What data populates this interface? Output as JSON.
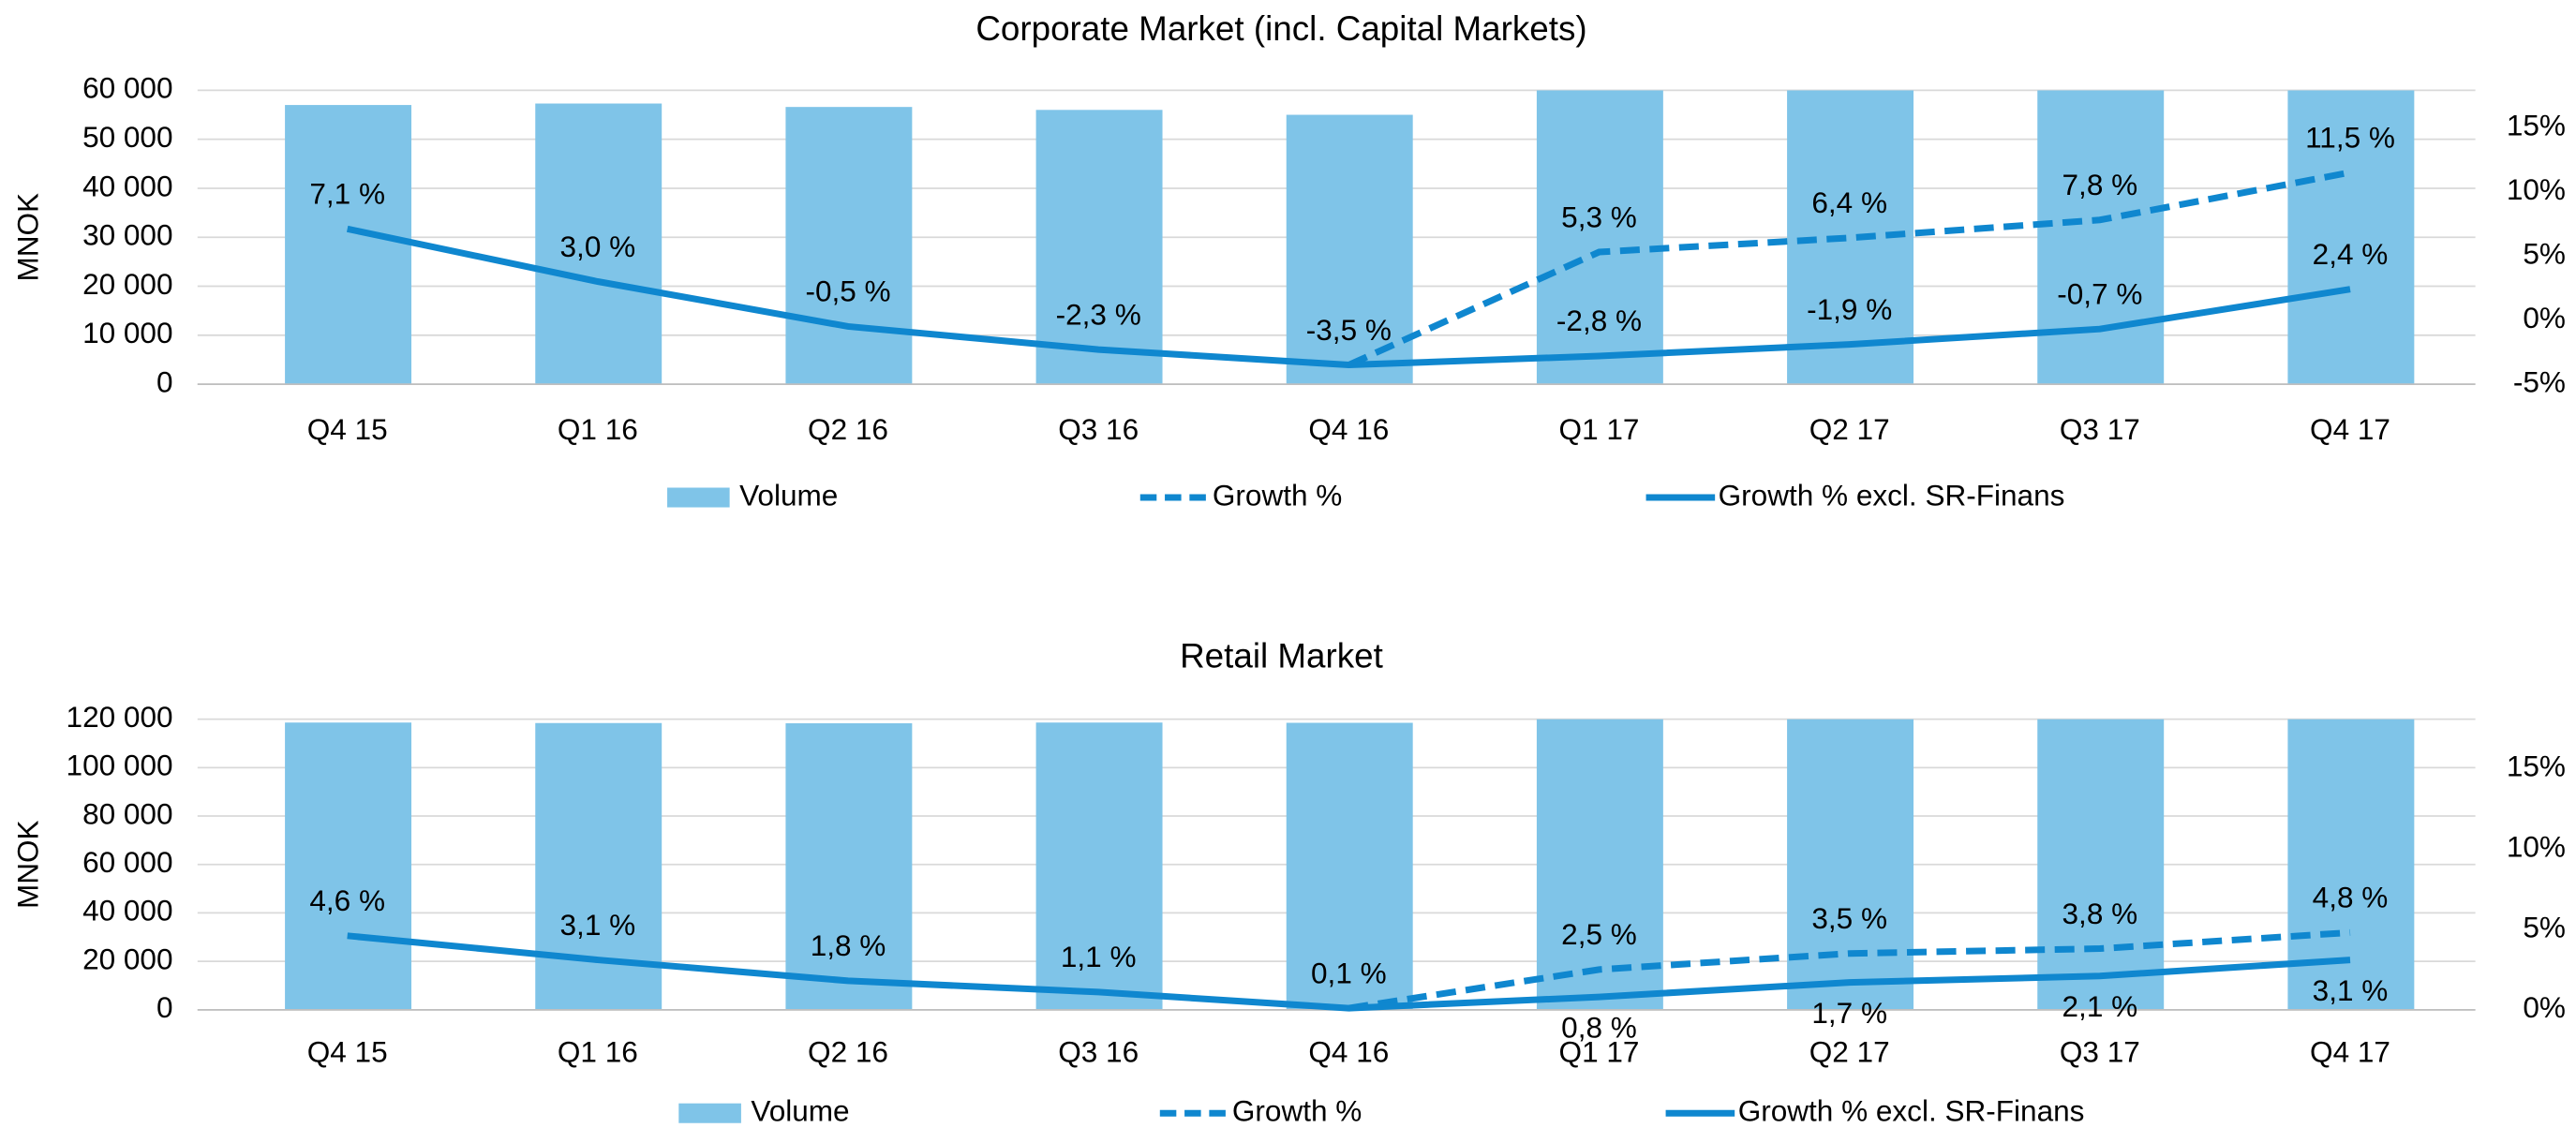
{
  "chart_data": [
    {
      "type": "bar_line",
      "title": "Corporate Market (incl. Capital Markets)",
      "y_label": "MNOK",
      "categories": [
        "Q4 15",
        "Q1 16",
        "Q2 16",
        "Q3 16",
        "Q4 16",
        "Q1 17",
        "Q2 17",
        "Q3 17",
        "Q4 17"
      ],
      "series": [
        {
          "name": "Volume",
          "type": "bar",
          "color": "#7fc4e8",
          "values": [
            57000,
            57300,
            56600,
            56000,
            55000,
            60000,
            60000,
            60000,
            60000
          ]
        },
        {
          "name": "Growth %",
          "type": "line",
          "line_style": "dashed",
          "axis": "y2",
          "color": "#0f87cf",
          "values": [
            null,
            null,
            null,
            null,
            -3.5,
            5.3,
            6.4,
            7.8,
            11.5
          ],
          "value_labels": [
            null,
            null,
            null,
            null,
            "-3,5 %",
            "5,3 %",
            "6,4 %",
            "7,8 %",
            "11,5 %"
          ]
        },
        {
          "name": "Growth % excl. SR-Finans",
          "type": "line",
          "line_style": "solid",
          "axis": "y2",
          "color": "#0f87cf",
          "values": [
            7.1,
            3.0,
            -0.5,
            -2.3,
            -3.5,
            -2.8,
            -1.9,
            -0.7,
            2.4
          ],
          "value_labels": [
            "7,1 %",
            "3,0 %",
            "-0,5 %",
            "-2,3 %",
            "-3,5 %",
            "-2,8 %",
            "-1,9 %",
            "-0,7 %",
            "2,4 %"
          ]
        }
      ],
      "ylim": [
        0,
        60000
      ],
      "yticks": [
        {
          "value": 0,
          "label": "0"
        },
        {
          "value": 10000,
          "label": "10 000"
        },
        {
          "value": 20000,
          "label": "20 000"
        },
        {
          "value": 30000,
          "label": "30 000"
        },
        {
          "value": 40000,
          "label": "40 000"
        },
        {
          "value": 50000,
          "label": "50 000"
        },
        {
          "value": 60000,
          "label": "60 000"
        }
      ],
      "y2lim": [
        -5,
        17.9
      ],
      "y2ticks": [
        {
          "value": -5,
          "label": "-5%"
        },
        {
          "value": 0,
          "label": "0%"
        },
        {
          "value": 5,
          "label": "5%"
        },
        {
          "value": 10,
          "label": "10%"
        },
        {
          "value": 15,
          "label": "15%"
        }
      ],
      "grid": true,
      "legend": "bottom"
    },
    {
      "type": "bar_line",
      "title": "Retail Market",
      "y_label": "MNOK",
      "categories": [
        "Q4 15",
        "Q1 16",
        "Q2 16",
        "Q3 16",
        "Q4 16",
        "Q1 17",
        "Q2 17",
        "Q3 17",
        "Q4 17"
      ],
      "series": [
        {
          "name": "Volume",
          "type": "bar",
          "color": "#7fc4e8",
          "values": [
            118600,
            118400,
            118300,
            118600,
            118500,
            120000,
            120000,
            120000,
            120000
          ]
        },
        {
          "name": "Growth %",
          "type": "line",
          "line_style": "dashed",
          "axis": "y2",
          "color": "#0f87cf",
          "values": [
            null,
            null,
            null,
            null,
            0.1,
            2.5,
            3.5,
            3.8,
            4.8
          ],
          "value_labels": [
            null,
            null,
            null,
            null,
            "0,1 %",
            "2,5 %",
            "3,5 %",
            "3,8 %",
            "4,8 %"
          ]
        },
        {
          "name": "Growth % excl. SR-Finans",
          "type": "line",
          "line_style": "solid",
          "axis": "y2",
          "color": "#0f87cf",
          "values": [
            4.6,
            3.1,
            1.8,
            1.1,
            0.1,
            0.8,
            1.7,
            2.1,
            3.1
          ],
          "value_labels": [
            "4,6 %",
            "3,1 %",
            "1,8 %",
            "1,1 %",
            "0,1 %",
            "0,8 %",
            "1,7 %",
            "2,1 %",
            "3,1 %"
          ]
        }
      ],
      "ylim": [
        0,
        120000
      ],
      "yticks": [
        {
          "value": 0,
          "label": "0"
        },
        {
          "value": 20000,
          "label": "20 000"
        },
        {
          "value": 40000,
          "label": "40 000"
        },
        {
          "value": 60000,
          "label": "60 000"
        },
        {
          "value": 80000,
          "label": "80 000"
        },
        {
          "value": 100000,
          "label": "100 000"
        },
        {
          "value": 120000,
          "label": "120 000"
        }
      ],
      "y2lim": [
        0,
        18.06
      ],
      "y2ticks": [
        {
          "value": 0,
          "label": "0%"
        },
        {
          "value": 5,
          "label": "5%"
        },
        {
          "value": 10,
          "label": "10%"
        },
        {
          "value": 15,
          "label": "15%"
        }
      ],
      "grid": true,
      "legend": "bottom"
    }
  ]
}
